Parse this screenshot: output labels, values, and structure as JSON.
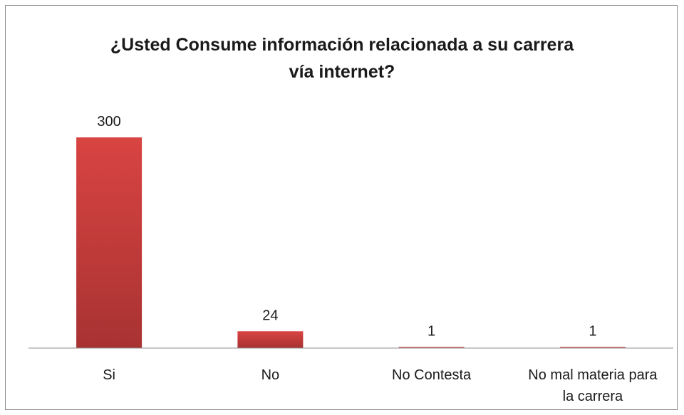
{
  "chart_data": {
    "type": "bar",
    "title_lines": [
      "¿Usted Consume información relacionada a su carrera",
      "vía internet?"
    ],
    "categories": [
      [
        "Si"
      ],
      [
        "No"
      ],
      [
        "No Contesta"
      ],
      [
        "No mal materia para",
        "la carrera"
      ]
    ],
    "values": [
      300,
      24,
      1,
      1
    ],
    "data_labels": [
      "300",
      "24",
      "1",
      "1"
    ],
    "ylim": [
      0,
      300
    ],
    "grid": false,
    "legend": "none",
    "bar_color_top": "#d84442",
    "bar_color_bottom": "#a83232",
    "axis_color": "#8c8c8c"
  }
}
